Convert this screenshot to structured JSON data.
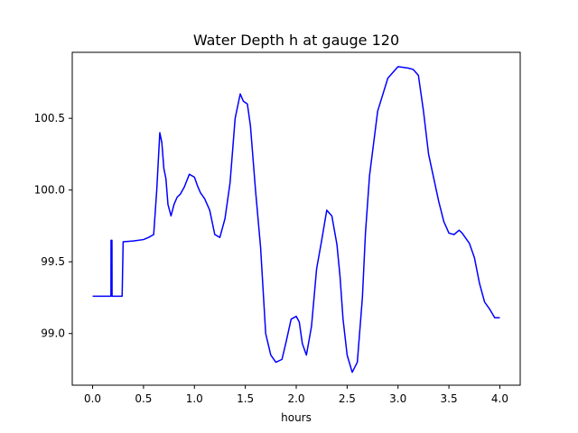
{
  "chart_data": {
    "type": "line",
    "title": "Water Depth h at gauge 120",
    "xlabel": "hours",
    "ylabel": "",
    "xlim": [
      -0.2,
      4.2
    ],
    "ylim": [
      98.64,
      100.96
    ],
    "xticks": [
      0.0,
      0.5,
      1.0,
      1.5,
      2.0,
      2.5,
      3.0,
      3.5,
      4.0
    ],
    "xtick_labels": [
      "0.0",
      "0.5",
      "1.0",
      "1.5",
      "2.0",
      "2.5",
      "3.0",
      "3.5",
      "4.0"
    ],
    "yticks": [
      99.0,
      99.5,
      100.0,
      100.5
    ],
    "ytick_labels": [
      "99.0",
      "99.5",
      "100.0",
      "100.5"
    ],
    "grid": false,
    "legend": "none",
    "series": [
      {
        "color": "#0000ff",
        "x": [
          0.0,
          0.18,
          0.181,
          0.19,
          0.191,
          0.2,
          0.29,
          0.3,
          0.4,
          0.5,
          0.55,
          0.6,
          0.63,
          0.66,
          0.68,
          0.7,
          0.72,
          0.74,
          0.77,
          0.8,
          0.83,
          0.86,
          0.9,
          0.95,
          1.0,
          1.03,
          1.06,
          1.1,
          1.15,
          1.2,
          1.25,
          1.3,
          1.35,
          1.4,
          1.45,
          1.48,
          1.52,
          1.55,
          1.6,
          1.65,
          1.7,
          1.75,
          1.8,
          1.86,
          1.9,
          1.95,
          2.0,
          2.03,
          2.06,
          2.1,
          2.15,
          2.2,
          2.25,
          2.3,
          2.35,
          2.4,
          2.43,
          2.46,
          2.5,
          2.55,
          2.6,
          2.65,
          2.68,
          2.72,
          2.8,
          2.9,
          3.0,
          3.1,
          3.15,
          3.2,
          3.25,
          3.3,
          3.4,
          3.45,
          3.5,
          3.55,
          3.6,
          3.63,
          3.67,
          3.7,
          3.75,
          3.8,
          3.85,
          3.9,
          3.95,
          4.0
        ],
        "values": [
          99.26,
          99.26,
          99.65,
          99.65,
          99.26,
          99.26,
          99.26,
          99.64,
          99.645,
          99.655,
          99.67,
          99.69,
          100.0,
          100.4,
          100.33,
          100.15,
          100.08,
          99.9,
          99.82,
          99.9,
          99.95,
          99.97,
          100.02,
          100.11,
          100.09,
          100.03,
          99.98,
          99.94,
          99.86,
          99.69,
          99.67,
          99.8,
          100.05,
          100.5,
          100.67,
          100.62,
          100.6,
          100.45,
          100.0,
          99.6,
          99.0,
          98.85,
          98.8,
          98.82,
          98.94,
          99.1,
          99.12,
          99.08,
          98.93,
          98.85,
          99.05,
          99.45,
          99.65,
          99.86,
          99.82,
          99.62,
          99.4,
          99.1,
          98.85,
          98.73,
          98.8,
          99.25,
          99.7,
          100.1,
          100.55,
          100.78,
          100.86,
          100.85,
          100.84,
          100.8,
          100.55,
          100.25,
          99.92,
          99.78,
          99.7,
          99.69,
          99.72,
          99.7,
          99.66,
          99.63,
          99.53,
          99.35,
          99.22,
          99.17,
          99.11,
          99.11
        ]
      }
    ]
  }
}
